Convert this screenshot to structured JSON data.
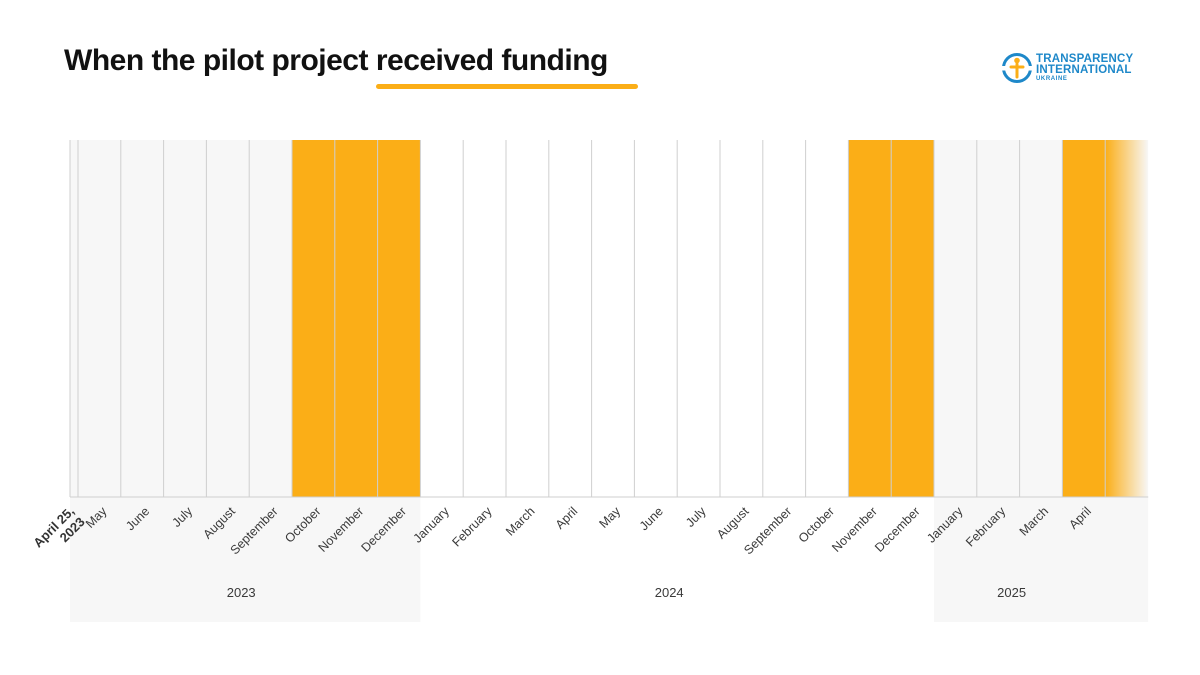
{
  "title": {
    "prefix": "When the pilot project ",
    "highlight": "received funding"
  },
  "logo": {
    "line1": "TRANSPARENCY",
    "line2": "INTERNATIONAL",
    "line3": "UKRAINE"
  },
  "colors": {
    "accent": "#FBAE17",
    "logo_blue": "#1E88C9",
    "shade": "#F7F7F7",
    "gridline": "#CFCFCF",
    "text": "#3A3A3A"
  },
  "chart_data": {
    "type": "timeline",
    "start_label": "April 25, 2023",
    "months": [
      {
        "label": "May",
        "year": "2023",
        "funded": false
      },
      {
        "label": "June",
        "year": "2023",
        "funded": false
      },
      {
        "label": "July",
        "year": "2023",
        "funded": false
      },
      {
        "label": "August",
        "year": "2023",
        "funded": false
      },
      {
        "label": "September",
        "year": "2023",
        "funded": false
      },
      {
        "label": "October",
        "year": "2023",
        "funded": true
      },
      {
        "label": "November",
        "year": "2023",
        "funded": true
      },
      {
        "label": "December",
        "year": "2023",
        "funded": true
      },
      {
        "label": "January",
        "year": "2024",
        "funded": false
      },
      {
        "label": "February",
        "year": "2024",
        "funded": false
      },
      {
        "label": "March",
        "year": "2024",
        "funded": false
      },
      {
        "label": "April",
        "year": "2024",
        "funded": false
      },
      {
        "label": "May",
        "year": "2024",
        "funded": false
      },
      {
        "label": "June",
        "year": "2024",
        "funded": false
      },
      {
        "label": "July",
        "year": "2024",
        "funded": false
      },
      {
        "label": "August",
        "year": "2024",
        "funded": false
      },
      {
        "label": "September",
        "year": "2024",
        "funded": false
      },
      {
        "label": "October",
        "year": "2024",
        "funded": false
      },
      {
        "label": "November",
        "year": "2024",
        "funded": true
      },
      {
        "label": "December",
        "year": "2024",
        "funded": true
      },
      {
        "label": "January",
        "year": "2025",
        "funded": false
      },
      {
        "label": "February",
        "year": "2025",
        "funded": false
      },
      {
        "label": "March",
        "year": "2025",
        "funded": false
      },
      {
        "label": "April",
        "year": "2025",
        "funded": true
      }
    ],
    "ongoing_after_last": true,
    "years": [
      {
        "label": "2023",
        "shaded": true
      },
      {
        "label": "2024",
        "shaded": false
      },
      {
        "label": "2025",
        "shaded": true
      }
    ]
  }
}
